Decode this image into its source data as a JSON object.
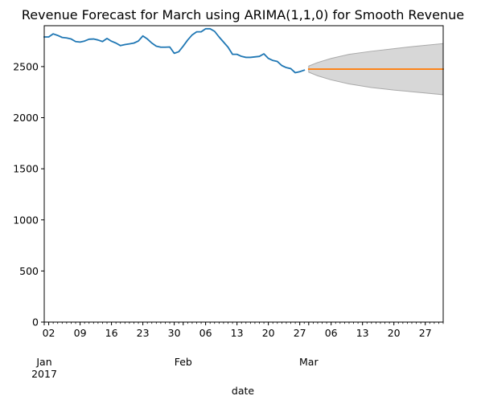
{
  "chart_data": {
    "type": "line",
    "title": "Revenue Forecast for March using ARIMA(1,1,0) for Smooth Revenue",
    "xlabel": "date",
    "ylabel": "",
    "grid": false,
    "legend": "none",
    "xlim": [
      "2017-01-01",
      "2017-03-31"
    ],
    "ylim": [
      0,
      2900
    ],
    "y_ticks": [
      0,
      500,
      1000,
      1500,
      2000,
      2500
    ],
    "x_minor_day_ticks": [
      "02",
      "09",
      "16",
      "23",
      "30",
      "06",
      "13",
      "20",
      "27",
      "06",
      "13",
      "20",
      "27"
    ],
    "x_tick_dates": [
      "2017-01-02",
      "2017-01-09",
      "2017-01-16",
      "2017-01-23",
      "2017-01-30",
      "2017-02-06",
      "2017-02-13",
      "2017-02-20",
      "2017-02-27",
      "2017-03-06",
      "2017-03-13",
      "2017-03-20",
      "2017-03-27"
    ],
    "x_month_labels": [
      {
        "text": "Jan",
        "date": "2017-01-01",
        "year": "2017"
      },
      {
        "text": "Feb",
        "date": "2017-02-01",
        "year": ""
      },
      {
        "text": "Mar",
        "date": "2017-03-01",
        "year": ""
      }
    ],
    "series": [
      {
        "role": "observed",
        "color": "#1f77b4",
        "x": [
          "2017-01-01",
          "2017-01-02",
          "2017-01-03",
          "2017-01-04",
          "2017-01-05",
          "2017-01-06",
          "2017-01-07",
          "2017-01-08",
          "2017-01-09",
          "2017-01-10",
          "2017-01-11",
          "2017-01-12",
          "2017-01-13",
          "2017-01-14",
          "2017-01-15",
          "2017-01-16",
          "2017-01-17",
          "2017-01-18",
          "2017-01-19",
          "2017-01-20",
          "2017-01-21",
          "2017-01-22",
          "2017-01-23",
          "2017-01-24",
          "2017-01-25",
          "2017-01-26",
          "2017-01-27",
          "2017-01-28",
          "2017-01-29",
          "2017-01-30",
          "2017-01-31",
          "2017-02-01",
          "2017-02-02",
          "2017-02-03",
          "2017-02-04",
          "2017-02-05",
          "2017-02-06",
          "2017-02-07",
          "2017-02-08",
          "2017-02-09",
          "2017-02-10",
          "2017-02-11",
          "2017-02-12",
          "2017-02-13",
          "2017-02-14",
          "2017-02-15",
          "2017-02-16",
          "2017-02-17",
          "2017-02-18",
          "2017-02-19",
          "2017-02-20",
          "2017-02-21",
          "2017-02-22",
          "2017-02-23",
          "2017-02-24",
          "2017-02-25",
          "2017-02-26",
          "2017-02-27",
          "2017-02-28"
        ],
        "values": [
          2790,
          2790,
          2820,
          2805,
          2785,
          2780,
          2770,
          2745,
          2740,
          2750,
          2768,
          2770,
          2760,
          2745,
          2775,
          2748,
          2730,
          2705,
          2715,
          2722,
          2730,
          2750,
          2800,
          2770,
          2730,
          2700,
          2690,
          2690,
          2692,
          2630,
          2645,
          2700,
          2760,
          2810,
          2840,
          2840,
          2870,
          2870,
          2845,
          2790,
          2740,
          2690,
          2620,
          2620,
          2600,
          2590,
          2590,
          2595,
          2600,
          2625,
          2580,
          2560,
          2550,
          2510,
          2490,
          2480,
          2440,
          2450,
          2465
        ]
      },
      {
        "role": "forecast",
        "color": "#ff7f0e",
        "x": [
          "2017-03-01",
          "2017-03-31"
        ],
        "values": [
          2475,
          2475
        ]
      }
    ],
    "confidence_interval": {
      "color": "#d3d3d3",
      "x": [
        "2017-03-01",
        "2017-03-03",
        "2017-03-06",
        "2017-03-10",
        "2017-03-15",
        "2017-03-20",
        "2017-03-25",
        "2017-03-31"
      ],
      "lower": [
        2445,
        2410,
        2370,
        2330,
        2295,
        2270,
        2250,
        2225
      ],
      "upper": [
        2505,
        2540,
        2580,
        2620,
        2650,
        2675,
        2700,
        2725
      ]
    }
  }
}
